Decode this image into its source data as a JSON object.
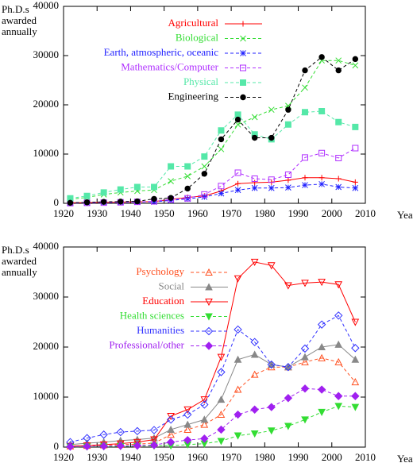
{
  "chart_data": [
    {
      "type": "line",
      "ylabel": "Ph.D.s awarded annually",
      "xlabel": "Year",
      "x": [
        1922,
        1927,
        1932,
        1937,
        1942,
        1947,
        1952,
        1957,
        1962,
        1967,
        1972,
        1977,
        1982,
        1987,
        1992,
        1997,
        2002,
        2007
      ],
      "xlim": [
        1920,
        2010
      ],
      "xticks": [
        1920,
        1930,
        1940,
        1950,
        1960,
        1970,
        1980,
        1990,
        2000,
        2010
      ],
      "ylim": [
        0,
        40000
      ],
      "yticks": [
        0,
        10000,
        20000,
        30000,
        40000
      ],
      "series": [
        {
          "name": "Agricultural",
          "color": "#ff0000",
          "marker": "plus",
          "dashed": false,
          "values": [
            100,
            150,
            200,
            250,
            300,
            350,
            800,
            1200,
            1500,
            2500,
            4000,
            4200,
            4300,
            4700,
            5200,
            5200,
            5000,
            4300
          ]
        },
        {
          "name": "Biological",
          "color": "#33dd33",
          "marker": "cross",
          "dashed": true,
          "values": [
            800,
            1200,
            1800,
            2200,
            2500,
            2700,
            4500,
            5500,
            7500,
            11000,
            16000,
            17500,
            19000,
            19800,
            23500,
            29000,
            29000,
            28000
          ]
        },
        {
          "name": "Earth, atmospheric, oceanic",
          "color": "#2020ff",
          "marker": "star",
          "dashed": true,
          "values": [
            50,
            100,
            150,
            200,
            250,
            300,
            600,
            900,
            1300,
            2000,
            2700,
            3100,
            3100,
            3200,
            3700,
            3900,
            3300,
            3100
          ]
        },
        {
          "name": "Mathematics/Computer",
          "color": "#b030ff",
          "marker": "square-open",
          "dashed": true,
          "values": [
            50,
            100,
            150,
            200,
            300,
            400,
            800,
            1000,
            1800,
            3500,
            6200,
            5000,
            4800,
            5800,
            9300,
            10200,
            9200,
            11200
          ]
        },
        {
          "name": "Physical",
          "color": "#55e8a8",
          "marker": "square",
          "dashed": true,
          "values": [
            1000,
            1500,
            2200,
            2800,
            3300,
            3300,
            7500,
            7500,
            9500,
            14800,
            18000,
            14000,
            13000,
            16000,
            18500,
            18700,
            16500,
            15500
          ]
        },
        {
          "name": "Engineering",
          "color": "#000000",
          "marker": "circle",
          "dashed": true,
          "values": [
            100,
            200,
            300,
            350,
            400,
            900,
            1100,
            3000,
            6000,
            13000,
            17000,
            13300,
            13300,
            19000,
            27000,
            29700,
            27000,
            29300
          ]
        }
      ]
    },
    {
      "type": "line",
      "ylabel": "Ph.D.s awarded annually",
      "xlabel": "Year",
      "x": [
        1922,
        1927,
        1932,
        1937,
        1942,
        1947,
        1952,
        1957,
        1962,
        1967,
        1972,
        1977,
        1982,
        1987,
        1992,
        1997,
        2002,
        2007
      ],
      "xlim": [
        1920,
        2010
      ],
      "xticks": [
        1920,
        1930,
        1940,
        1950,
        1960,
        1970,
        1980,
        1990,
        2000,
        2010
      ],
      "ylim": [
        0,
        40000
      ],
      "yticks": [
        0,
        10000,
        20000,
        30000,
        40000
      ],
      "series": [
        {
          "name": "Psychology",
          "color": "#ff5020",
          "marker": "triangle-open",
          "dashed": true,
          "values": [
            200,
            300,
            400,
            500,
            600,
            800,
            2500,
            3500,
            4500,
            6500,
            11500,
            14500,
            16000,
            16000,
            17000,
            17800,
            17000,
            13000
          ]
        },
        {
          "name": "Social",
          "color": "#888888",
          "marker": "triangle",
          "dashed": false,
          "values": [
            500,
            800,
            1000,
            1300,
            1500,
            1800,
            3500,
            4500,
            5500,
            9500,
            17500,
            18500,
            16500,
            16000,
            18000,
            20000,
            20500,
            17500
          ]
        },
        {
          "name": "Education",
          "color": "#ff0000",
          "marker": "triangle-down-open",
          "dashed": false,
          "values": [
            200,
            300,
            500,
            700,
            1000,
            1500,
            6200,
            7500,
            9500,
            18000,
            33700,
            37000,
            36300,
            32300,
            32800,
            33000,
            32500,
            25000
          ]
        },
        {
          "name": "Health sciences",
          "color": "#33dd33",
          "marker": "triangle-down",
          "dashed": true,
          "values": [
            50,
            80,
            100,
            150,
            200,
            250,
            300,
            500,
            700,
            1200,
            2300,
            2700,
            3300,
            4200,
            5500,
            7000,
            8200,
            8000
          ]
        },
        {
          "name": "Humanities",
          "color": "#3030ff",
          "marker": "diamond-open",
          "dashed": true,
          "values": [
            1000,
            1800,
            2500,
            3000,
            3200,
            3400,
            5500,
            6500,
            8500,
            15000,
            23500,
            21000,
            16500,
            16000,
            19700,
            24500,
            26300,
            19800
          ]
        },
        {
          "name": "Professional/other",
          "color": "#a020f0",
          "marker": "diamond",
          "dashed": true,
          "values": [
            100,
            150,
            200,
            250,
            300,
            400,
            1000,
            1400,
            1700,
            3500,
            6500,
            7500,
            8000,
            9800,
            11700,
            11500,
            10200,
            10200
          ]
        }
      ]
    }
  ]
}
